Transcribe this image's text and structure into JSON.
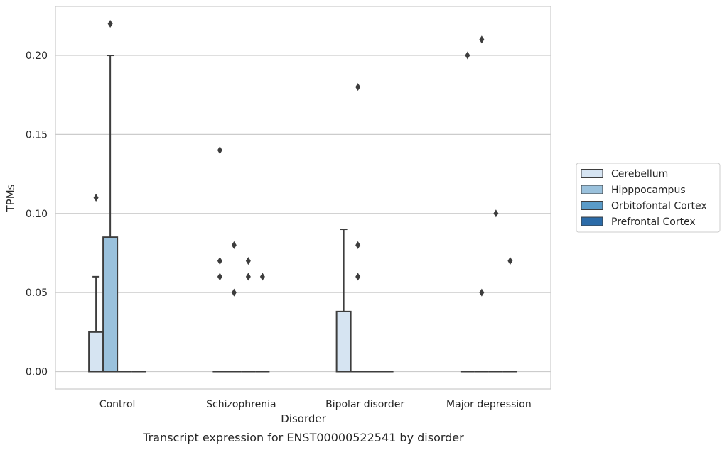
{
  "chart_data": {
    "type": "box",
    "title": "",
    "caption": "Transcript expression for ENST00000522541 by disorder",
    "xlabel": "Disorder",
    "ylabel": "TPMs",
    "ylim": [
      -0.011,
      0.231
    ],
    "yticks": [
      0.0,
      0.05,
      0.1,
      0.15,
      0.2
    ],
    "ytick_labels": [
      "0.00",
      "0.05",
      "0.10",
      "0.15",
      "0.20"
    ],
    "grid": "horizontal",
    "legend_position": "right",
    "categories": [
      "Control",
      "Schizophrenia",
      "Bipolar disorder",
      "Major depression"
    ],
    "series": [
      {
        "name": "Cerebellum",
        "color": "#d6e4f2",
        "boxes": [
          {
            "category": "Control",
            "q1": 0.0,
            "median": 0.0,
            "q3": 0.025,
            "whisker_low": 0.0,
            "whisker_high": 0.06,
            "outliers": [
              0.11
            ]
          },
          {
            "category": "Schizophrenia",
            "q1": 0.0,
            "median": 0.0,
            "q3": 0.0,
            "whisker_low": 0.0,
            "whisker_high": 0.0,
            "outliers": [
              0.06,
              0.07,
              0.14
            ]
          },
          {
            "category": "Bipolar disorder",
            "q1": 0.0,
            "median": 0.0,
            "q3": 0.038,
            "whisker_low": 0.0,
            "whisker_high": 0.09,
            "outliers": []
          },
          {
            "category": "Major depression",
            "q1": 0.0,
            "median": 0.0,
            "q3": 0.0,
            "whisker_low": 0.0,
            "whisker_high": 0.0,
            "outliers": [
              0.2
            ]
          }
        ]
      },
      {
        "name": "Hipppocampus",
        "color": "#9ac1dc",
        "boxes": [
          {
            "category": "Control",
            "q1": 0.0,
            "median": 0.0,
            "q3": 0.085,
            "whisker_low": 0.0,
            "whisker_high": 0.2,
            "outliers": [
              0.22
            ]
          },
          {
            "category": "Schizophrenia",
            "q1": 0.0,
            "median": 0.0,
            "q3": 0.0,
            "whisker_low": 0.0,
            "whisker_high": 0.0,
            "outliers": [
              0.05,
              0.08
            ]
          },
          {
            "category": "Bipolar disorder",
            "q1": 0.0,
            "median": 0.0,
            "q3": 0.0,
            "whisker_low": 0.0,
            "whisker_high": 0.0,
            "outliers": [
              0.18,
              0.08,
              0.06
            ]
          },
          {
            "category": "Major depression",
            "q1": 0.0,
            "median": 0.0,
            "q3": 0.0,
            "whisker_low": 0.0,
            "whisker_high": 0.0,
            "outliers": [
              0.05,
              0.21
            ]
          }
        ]
      },
      {
        "name": "Orbitofontal Cortex",
        "color": "#5a9bc8",
        "boxes": [
          {
            "category": "Control",
            "q1": 0.0,
            "median": 0.0,
            "q3": 0.0,
            "whisker_low": 0.0,
            "whisker_high": 0.0,
            "outliers": []
          },
          {
            "category": "Schizophrenia",
            "q1": 0.0,
            "median": 0.0,
            "q3": 0.0,
            "whisker_low": 0.0,
            "whisker_high": 0.0,
            "outliers": [
              0.06,
              0.07
            ]
          },
          {
            "category": "Bipolar disorder",
            "q1": 0.0,
            "median": 0.0,
            "q3": 0.0,
            "whisker_low": 0.0,
            "whisker_high": 0.0,
            "outliers": []
          },
          {
            "category": "Major depression",
            "q1": 0.0,
            "median": 0.0,
            "q3": 0.0,
            "whisker_low": 0.0,
            "whisker_high": 0.0,
            "outliers": [
              0.1
            ]
          }
        ]
      },
      {
        "name": "Prefrontal Cortex",
        "color": "#2b6ba8",
        "boxes": [
          {
            "category": "Control",
            "q1": 0.0,
            "median": 0.0,
            "q3": 0.0,
            "whisker_low": 0.0,
            "whisker_high": 0.0,
            "outliers": []
          },
          {
            "category": "Schizophrenia",
            "q1": 0.0,
            "median": 0.0,
            "q3": 0.0,
            "whisker_low": 0.0,
            "whisker_high": 0.0,
            "outliers": [
              0.06
            ]
          },
          {
            "category": "Bipolar disorder",
            "q1": 0.0,
            "median": 0.0,
            "q3": 0.0,
            "whisker_low": 0.0,
            "whisker_high": 0.0,
            "outliers": []
          },
          {
            "category": "Major depression",
            "q1": 0.0,
            "median": 0.0,
            "q3": 0.0,
            "whisker_low": 0.0,
            "whisker_high": 0.0,
            "outliers": [
              0.07
            ]
          }
        ]
      }
    ]
  }
}
